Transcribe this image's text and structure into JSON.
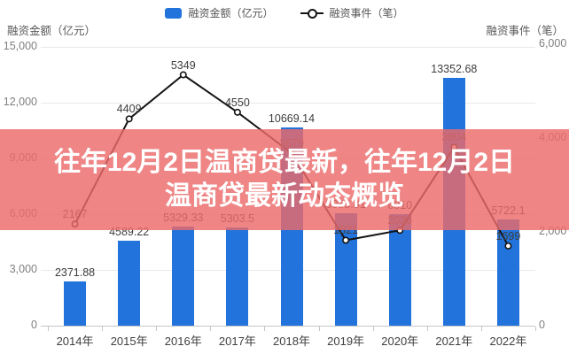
{
  "legend": {
    "bar_label": "融资金额（亿元）",
    "line_label": "融资事件（笔）"
  },
  "axes": {
    "left_title": "融资金额（亿元）",
    "right_title": "融资事件（笔）",
    "left_ticks": [
      "0",
      "3,000",
      "6,000",
      "9,000",
      "12,000",
      "15,000"
    ],
    "right_ticks": [
      "0",
      "2,000",
      "4,000",
      "6,000"
    ]
  },
  "overlay": {
    "line1": "往年12月2日温商贷最新，往年12月2日",
    "line2": "温商贷最新动态概览"
  },
  "colors": {
    "bar": "#2273DC",
    "line": "#141414",
    "overlay_bg": "rgba(235,106,106,0.82)",
    "grid": "#E9E9E9"
  },
  "chart_data": {
    "type": "bar+line combo",
    "categories": [
      "2014年",
      "2015年",
      "2016年",
      "2017年",
      "2018年",
      "2019年",
      "2020年",
      "2021年",
      "2022年"
    ],
    "series": [
      {
        "name": "融资金额（亿元）",
        "type": "bar",
        "axis": "left",
        "values": [
          2371.88,
          4589.22,
          5329.33,
          5303.5,
          10669.14,
          6055.81,
          6010,
          13352.68,
          5722.1
        ],
        "labels": [
          "2371.88",
          "4589.22",
          "5329.33",
          "5303.5",
          "10669.14",
          "6055.81",
          "6010",
          "13352.68",
          "5722.1"
        ]
      },
      {
        "name": "融资事件（笔）",
        "type": "line",
        "axis": "right",
        "values": [
          2167,
          4409,
          5349,
          4550,
          3679,
          1821,
          2033,
          3804,
          1699
        ],
        "labels": [
          "2167",
          "4409",
          "5349",
          "4550",
          "3679",
          "1821",
          "2033",
          "3804",
          "1699"
        ]
      }
    ],
    "left_axis": {
      "min": 0,
      "max": 15000,
      "tick_step": 3000
    },
    "right_axis": {
      "min": 0,
      "max": 6000,
      "tick_step": 2000
    },
    "grid": true,
    "legend_position": "top-center"
  }
}
